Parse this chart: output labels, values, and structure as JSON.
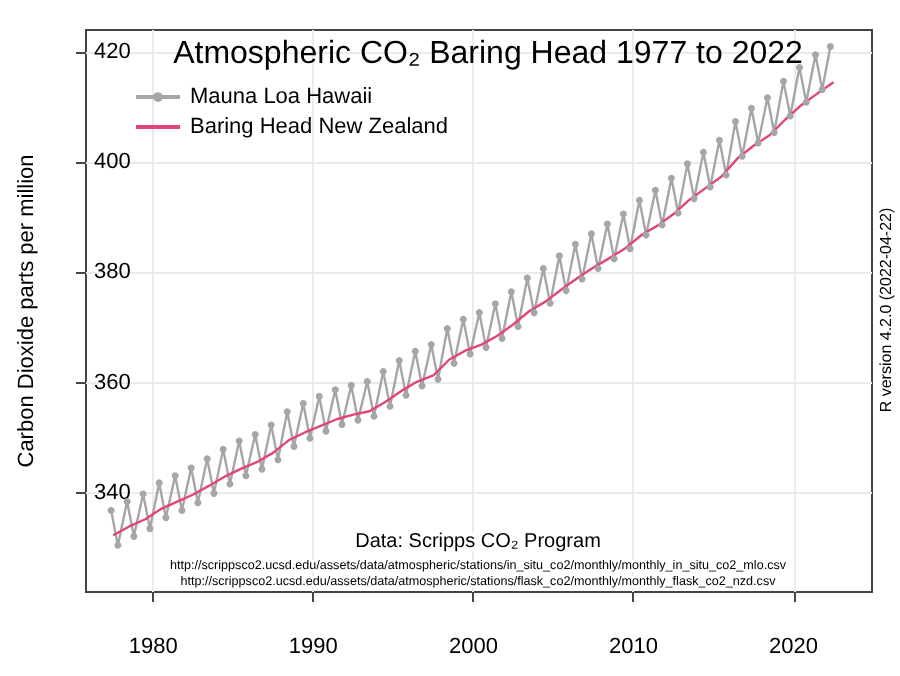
{
  "chart_data": {
    "type": "line",
    "title": "Atmospheric CO₂ Baring Head 1977 to 2022",
    "ylabel": "Carbon Dioxide parts per million",
    "annotations": [
      "Data: Scripps CO₂ Program",
      "http://scrippsco2.ucsd.edu/assets/data/atmospheric/stations/in_situ_co2/monthly/monthly_in_situ_co2_mlo.csv",
      "http://scrippsco2.ucsd.edu/assets/data/atmospheric/stations/flask_co2/monthly/monthly_flask_co2_nzd.csv",
      "R version 4.2.0 (2022-04-22)"
    ],
    "xlim": [
      1975.8,
      2024.9
    ],
    "xticks": [
      1980,
      1990,
      2000,
      2010,
      2020
    ],
    "ylim": [
      322,
      424
    ],
    "yticks": [
      340,
      360,
      380,
      400,
      420
    ],
    "grid": true,
    "legend": "top left",
    "series": [
      {
        "name": "Mauna Loa Hawaii",
        "color": "#a6a6a6",
        "marker": "circle",
        "x": [
          1977.37,
          1977.79,
          1978.37,
          1978.79,
          1979.37,
          1979.79,
          1980.37,
          1980.79,
          1981.37,
          1981.79,
          1982.37,
          1982.79,
          1983.37,
          1983.79,
          1984.37,
          1984.79,
          1985.37,
          1985.79,
          1986.37,
          1986.79,
          1987.37,
          1987.79,
          1988.37,
          1988.79,
          1989.37,
          1989.79,
          1990.37,
          1990.79,
          1991.37,
          1991.79,
          1992.37,
          1992.79,
          1993.37,
          1993.79,
          1994.37,
          1994.79,
          1995.37,
          1995.79,
          1996.37,
          1996.79,
          1997.37,
          1997.79,
          1998.37,
          1998.79,
          1999.37,
          1999.79,
          2000.37,
          2000.79,
          2001.37,
          2001.79,
          2002.37,
          2002.79,
          2003.37,
          2003.79,
          2004.37,
          2004.79,
          2005.37,
          2005.79,
          2006.37,
          2006.79,
          2007.37,
          2007.79,
          2008.37,
          2008.79,
          2009.37,
          2009.79,
          2010.37,
          2010.79,
          2011.37,
          2011.79,
          2012.37,
          2012.79,
          2013.37,
          2013.79,
          2014.37,
          2014.79,
          2015.37,
          2015.79,
          2016.37,
          2016.79,
          2017.37,
          2017.79,
          2018.37,
          2018.79,
          2019.37,
          2019.79,
          2020.37,
          2020.79,
          2021.37,
          2021.79,
          2022.3
        ],
        "values": [
          336.8,
          330.5,
          338.4,
          332.1,
          339.8,
          333.5,
          341.8,
          335.5,
          343.1,
          336.8,
          344.5,
          338.2,
          346.2,
          339.9,
          347.9,
          341.6,
          349.4,
          343.1,
          350.6,
          344.3,
          352.3,
          346.0,
          354.7,
          348.4,
          356.2,
          349.9,
          357.5,
          351.2,
          358.7,
          352.4,
          359.5,
          353.2,
          360.2,
          353.9,
          362.0,
          355.7,
          364.0,
          357.7,
          365.7,
          359.4,
          366.9,
          360.6,
          369.8,
          363.5,
          371.5,
          365.2,
          372.7,
          366.4,
          374.3,
          368.0,
          376.5,
          370.2,
          379.0,
          372.7,
          380.7,
          374.4,
          383.0,
          376.7,
          385.1,
          378.8,
          387.0,
          380.7,
          388.8,
          382.5,
          390.6,
          384.3,
          393.1,
          386.8,
          394.9,
          388.6,
          397.1,
          390.8,
          399.7,
          393.4,
          401.8,
          395.5,
          404.0,
          397.7,
          407.4,
          401.1,
          409.8,
          403.5,
          411.7,
          405.4,
          414.7,
          408.4,
          417.2,
          410.9,
          419.5,
          413.2,
          421.0
        ]
      },
      {
        "name": "Baring Head New Zealand",
        "color": "#e0457b",
        "marker": "none",
        "x": [
          1977.5,
          1978.5,
          1979.5,
          1980.5,
          1981.5,
          1982.5,
          1983.5,
          1984.5,
          1985.5,
          1986.5,
          1987.5,
          1988.5,
          1989.5,
          1990.5,
          1991.5,
          1992.5,
          1993.5,
          1994.5,
          1995.5,
          1996.5,
          1997.5,
          1998.5,
          1999.5,
          2000.5,
          2001.5,
          2002.5,
          2003.5,
          2004.5,
          2005.5,
          2006.5,
          2007.5,
          2008.5,
          2009.5,
          2010.5,
          2011.5,
          2012.5,
          2013.5,
          2014.5,
          2015.5,
          2016.5,
          2017.5,
          2018.5,
          2019.5,
          2020.5,
          2021.5,
          2022.5
        ],
        "values": [
          332.3,
          333.9,
          335.2,
          337.1,
          338.4,
          339.7,
          341.3,
          343.0,
          344.4,
          345.6,
          347.3,
          349.6,
          351.0,
          352.2,
          353.4,
          354.2,
          354.8,
          356.5,
          358.5,
          360.2,
          361.3,
          364.2,
          365.8,
          366.9,
          368.5,
          370.6,
          373.0,
          374.7,
          376.9,
          379.0,
          380.9,
          382.6,
          384.4,
          386.8,
          388.5,
          390.6,
          393.2,
          395.3,
          397.4,
          400.7,
          403.0,
          404.9,
          407.8,
          410.4,
          412.5,
          414.5
        ]
      }
    ]
  }
}
